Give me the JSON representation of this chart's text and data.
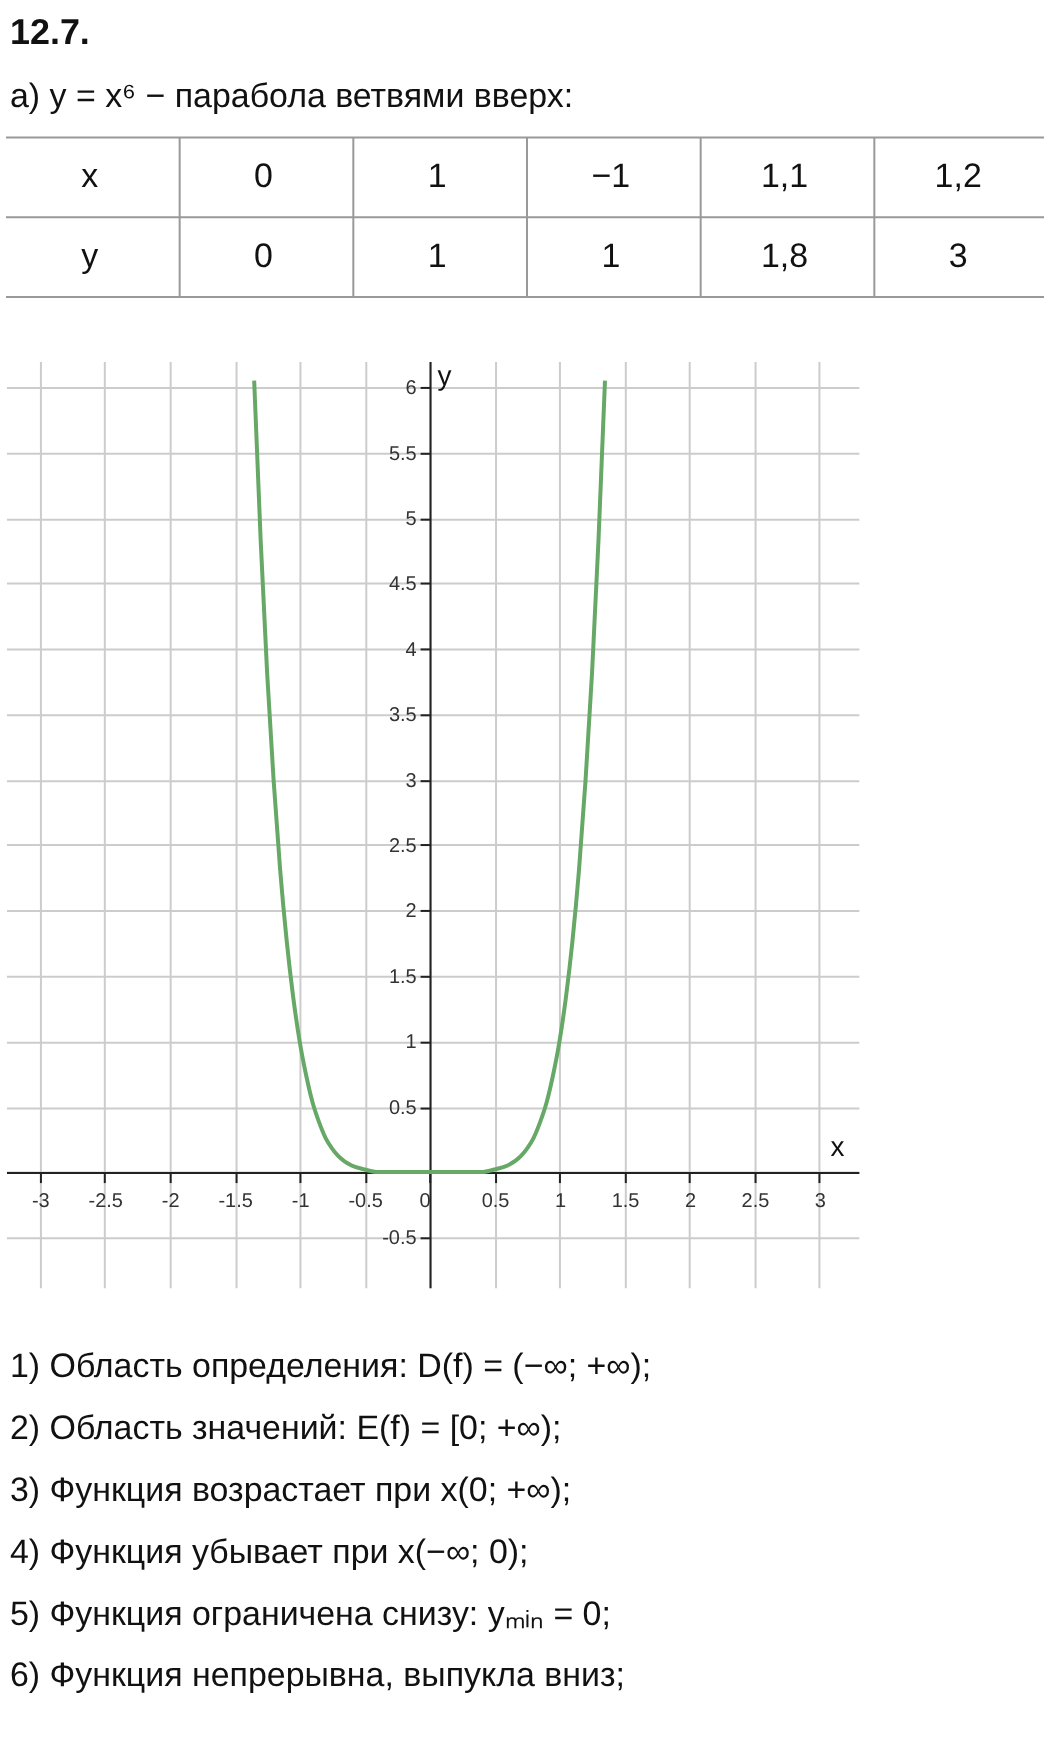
{
  "chart_data": [
    {
      "type": "other",
      "title": "12.7.",
      "subtitle": "а) y = x⁶ − парабола ветвями вверх:",
      "annotations": [
        "x",
        "0",
        "1",
        "−1",
        "1,1",
        "1,2",
        "y",
        "0",
        "1",
        "1",
        "1,8",
        "3"
      ]
    },
    {
      "type": "line",
      "x": [
        -1.35,
        -1.3,
        -1.25,
        -1.2,
        -1.15,
        -1.1,
        -1.05,
        -1.0,
        -0.95,
        -0.9,
        -0.85,
        -0.8,
        -0.75,
        -0.7,
        -0.6,
        -0.5,
        -0.4,
        -0.2,
        0,
        0.2,
        0.4,
        0.5,
        0.6,
        0.7,
        0.75,
        0.8,
        0.85,
        0.9,
        0.95,
        1.0,
        1.05,
        1.1,
        1.15,
        1.2,
        1.25,
        1.3,
        1.35
      ],
      "series": [
        {
          "color": "#66a866",
          "values": [
            6.05,
            4.83,
            3.81,
            2.99,
            2.31,
            1.77,
            1.34,
            1.0,
            0.74,
            0.53,
            0.38,
            0.26,
            0.18,
            0.12,
            0.05,
            0.02,
            0.0,
            0.0,
            0.0,
            0.0,
            0.0,
            0.02,
            0.05,
            0.12,
            0.18,
            0.26,
            0.38,
            0.53,
            0.74,
            1.0,
            1.34,
            1.77,
            2.31,
            2.99,
            3.81,
            4.83,
            6.05
          ]
        }
      ],
      "xlabel": "x",
      "ylabel": "y",
      "xlim": [
        -3.26,
        3.3
      ],
      "ylim": [
        -0.88,
        6.2
      ],
      "xticks": [
        -3,
        -2.5,
        -2,
        -1.5,
        -1,
        -0.5,
        0,
        0.5,
        1,
        1.5,
        2,
        2.5,
        3
      ],
      "yticks": [
        -0.5,
        {
          "value": 0,
          "label": null
        },
        0.5,
        1,
        1.5,
        2,
        2.5,
        3,
        3.5,
        4,
        4.5,
        5,
        5.5,
        6
      ],
      "grid": true,
      "line_style": "solid"
    },
    {
      "type": "other",
      "annotations": [
        "1) Область определения:  D(f) = (−∞; +∞);",
        "2) Область значений:  E(f) = [0; +∞);",
        "3) Функция возрастает при x(0; +∞);",
        "4) Функция убывает при x(−∞; 0);",
        "5) Функция ограничена снизу:  yₘᵢₙ = 0;",
        "6) Функция непрерывна, выпукла вниз;"
      ]
    }
  ]
}
